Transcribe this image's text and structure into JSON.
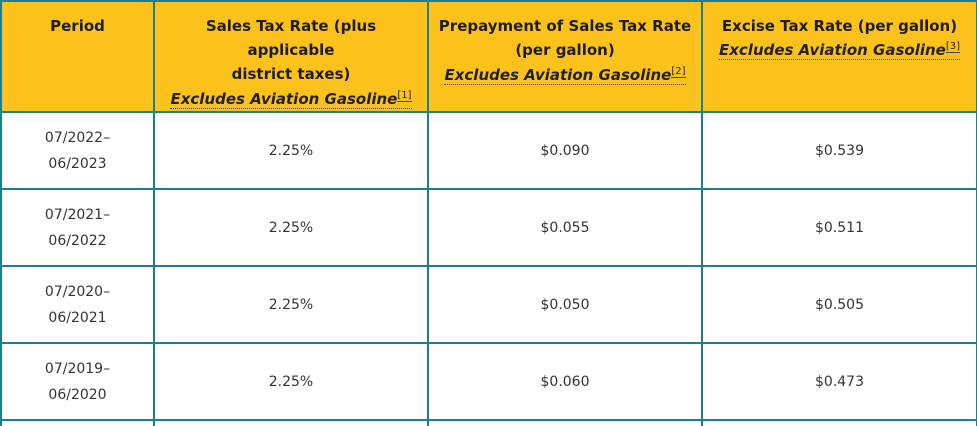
{
  "headers": {
    "period": "Period",
    "sales_tax": {
      "line1": "Sales Tax Rate (plus applicable",
      "line2": "district taxes)",
      "note": "Excludes Aviation Gasoline",
      "ref": "[1]"
    },
    "prepayment": {
      "line1": "Prepayment of Sales Tax Rate",
      "line2": "(per gallon)",
      "note": "Excludes Aviation Gasoline",
      "ref": "[2]"
    },
    "excise": {
      "line1": "Excise Tax Rate (per gallon)",
      "note": "Excludes Aviation Gasoline",
      "ref": "[3]"
    }
  },
  "rows": [
    {
      "period_start": "07/2022–",
      "period_end": "06/2023",
      "sales_tax": "2.25%",
      "prepayment": "$0.090",
      "excise": "$0.539"
    },
    {
      "period_start": "07/2021–",
      "period_end": "06/2022",
      "sales_tax": "2.25%",
      "prepayment": "$0.055",
      "excise": "$0.511"
    },
    {
      "period_start": "07/2020–",
      "period_end": "06/2021",
      "sales_tax": "2.25%",
      "prepayment": "$0.050",
      "excise": "$0.505"
    },
    {
      "period_start": "07/2019–",
      "period_end": "06/2020",
      "sales_tax": "2.25%",
      "prepayment": "$0.060",
      "excise": "$0.473"
    }
  ]
}
